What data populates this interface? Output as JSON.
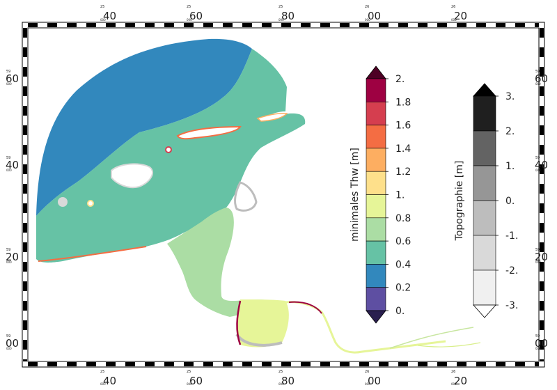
{
  "frame": {
    "x_ticks": [
      {
        "small": "25",
        "small2": "000",
        "big": "40"
      },
      {
        "small": "25",
        "small2": "000",
        "big": "60"
      },
      {
        "small": "25",
        "small2": "000",
        "big": "80"
      },
      {
        "small": "26",
        "small2": "000",
        "big": "00"
      },
      {
        "small": "26",
        "small2": "000",
        "big": "20"
      }
    ],
    "y_ticks": [
      {
        "small": "59",
        "small2": "000",
        "big": "60"
      },
      {
        "small": "59",
        "small2": "000",
        "big": "40"
      },
      {
        "small": "59",
        "small2": "000",
        "big": "20"
      },
      {
        "small": "59",
        "small2": "000",
        "big": "00"
      }
    ]
  },
  "legend_thw": {
    "label": "minimales Thw [m]",
    "ticks": [
      "2.",
      "1.8",
      "1.6",
      "1.4",
      "1.2",
      "1.",
      "0.8",
      "0.6",
      "0.4",
      "0.2",
      "0."
    ],
    "colors": [
      "#9e0142",
      "#d53e4f",
      "#f46d43",
      "#fdae61",
      "#fee08b",
      "#e6f598",
      "#abdda4",
      "#66c2a5",
      "#3288bd",
      "#5e4fa2"
    ],
    "over_color": "#4d0024",
    "under_color": "#2a1f4f"
  },
  "legend_topo": {
    "label": "Topographie [m]",
    "ticks": [
      "3.",
      "2.",
      "1.",
      "0.",
      "-1.",
      "-2.",
      "-3."
    ],
    "colors": [
      "#1f1f1f",
      "#636363",
      "#969696",
      "#bdbdbd",
      "#d9d9d9",
      "#f0f0f0"
    ],
    "over_color": "#000000",
    "under_color": "#ffffff"
  },
  "colors": {
    "deep": "#3288bd",
    "mid": "#66c2a5",
    "shallow": "#abdda4",
    "flat": "#e6f598",
    "land": "#bdbdbd"
  }
}
